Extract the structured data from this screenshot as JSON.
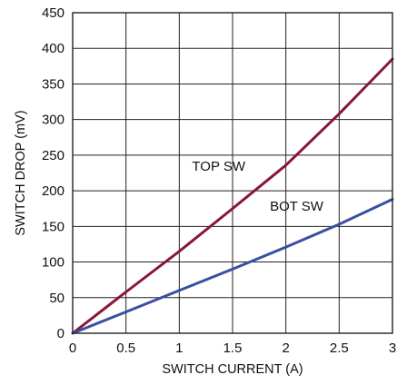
{
  "chart_data": {
    "type": "line",
    "title": "",
    "xlabel": "SWITCH CURRENT (A)",
    "ylabel": "SWITCH DROP (mV)",
    "xlim": [
      0,
      3
    ],
    "ylim": [
      0,
      450
    ],
    "xticks": [
      0,
      0.5,
      1,
      1.5,
      2,
      2.5,
      3
    ],
    "xtick_labels": [
      "0",
      "0.5",
      "1",
      "1.5",
      "2",
      "2.5",
      "3"
    ],
    "yticks": [
      0,
      50,
      100,
      150,
      200,
      250,
      300,
      350,
      400,
      450
    ],
    "ytick_labels": [
      "0",
      "50",
      "100",
      "150",
      "200",
      "250",
      "300",
      "350",
      "400",
      "450"
    ],
    "grid": true,
    "legend": "none",
    "series": [
      {
        "name": "TOP SW",
        "color": "#8b1538",
        "x": [
          0,
          0.5,
          1,
          1.5,
          2,
          2.5,
          3
        ],
        "y": [
          0,
          58,
          115,
          175,
          236,
          308,
          385
        ]
      },
      {
        "name": "BOT SW",
        "color": "#3a4fa0",
        "x": [
          0,
          0.5,
          1,
          1.5,
          2,
          2.5,
          3
        ],
        "y": [
          0,
          30,
          60,
          90,
          121,
          153,
          188
        ]
      }
    ],
    "annotations": [
      {
        "text": "TOP SW",
        "x": 1.12,
        "y": 228
      },
      {
        "text": "BOT SW",
        "x": 1.85,
        "y": 172
      }
    ]
  }
}
